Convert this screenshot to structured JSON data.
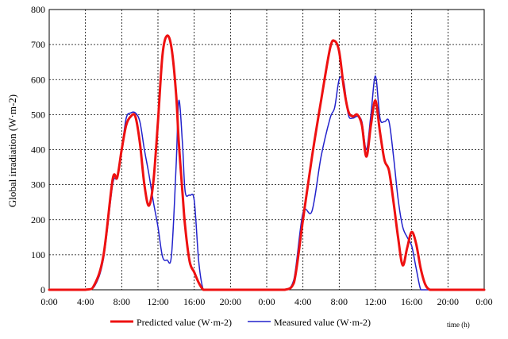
{
  "chart_data": {
    "type": "line",
    "ylabel": "Global irradiation (W·m-2)",
    "xlabel": "time (h)",
    "ylim": [
      0,
      800
    ],
    "yticks": [
      0,
      100,
      200,
      300,
      400,
      500,
      600,
      700,
      800
    ],
    "xlim": [
      0,
      48
    ],
    "xticks": [
      0,
      4,
      8,
      12,
      16,
      20,
      24,
      28,
      32,
      36,
      40,
      44,
      48
    ],
    "xtick_labels": [
      "0:00",
      "4:00",
      "8:00",
      "12:00",
      "16:00",
      "20:00",
      "0:00",
      "4:00",
      "8:00",
      "12:00",
      "16:00",
      "20:00",
      "0:00"
    ],
    "grid": true,
    "legend_position": "bottom",
    "series": [
      {
        "name": "Predicted value (W·m-2)",
        "color": "#ee1111",
        "x": [
          0,
          4,
          5,
          6,
          7,
          7.5,
          8,
          8.5,
          9,
          9.5,
          10,
          10.5,
          11,
          11.5,
          12,
          12.5,
          13,
          13.5,
          14,
          14.3,
          14.7,
          15,
          15.5,
          16,
          16.5,
          17,
          17.5,
          18,
          24,
          26,
          27,
          28,
          29,
          30,
          31,
          31.5,
          32,
          32.5,
          33,
          33.5,
          34,
          34.5,
          35,
          35.5,
          36,
          36.5,
          37,
          37.5,
          38,
          38.5,
          39,
          39.5,
          40,
          40.5,
          41,
          41.5,
          42,
          42.5,
          43,
          48
        ],
        "y": [
          0,
          0,
          15,
          100,
          315,
          320,
          400,
          470,
          495,
          495,
          420,
          300,
          240,
          310,
          480,
          670,
          725,
          690,
          560,
          420,
          280,
          180,
          80,
          50,
          20,
          0,
          0,
          0,
          0,
          0,
          20,
          200,
          380,
          540,
          690,
          710,
          680,
          580,
          510,
          495,
          500,
          470,
          380,
          470,
          540,
          450,
          370,
          340,
          250,
          150,
          70,
          120,
          165,
          130,
          60,
          15,
          0,
          0,
          0,
          0
        ]
      },
      {
        "name": "Measured value (W·m-2)",
        "color": "#2222cc",
        "x": [
          0,
          4,
          5,
          6,
          7,
          7.5,
          8,
          8.5,
          9,
          9.5,
          10,
          10.5,
          11,
          11.5,
          12,
          12.5,
          13,
          13.5,
          14,
          14.3,
          14.7,
          15,
          15.5,
          16,
          16.5,
          17,
          17.5,
          18,
          24,
          26,
          27,
          28,
          29,
          30,
          31,
          31.5,
          32,
          32.5,
          33,
          33.5,
          34,
          34.5,
          35,
          35.5,
          36,
          36.5,
          37,
          37.5,
          38,
          38.5,
          39,
          39.5,
          40,
          40.5,
          41,
          41.5,
          42,
          42.5,
          43,
          48
        ],
        "y": [
          0,
          0,
          10,
          90,
          300,
          320,
          400,
          490,
          505,
          505,
          480,
          400,
          330,
          250,
          180,
          95,
          85,
          100,
          350,
          540,
          420,
          280,
          270,
          255,
          80,
          0,
          0,
          0,
          0,
          0,
          30,
          220,
          225,
          380,
          490,
          520,
          600,
          595,
          500,
          490,
          495,
          480,
          400,
          500,
          610,
          490,
          480,
          480,
          380,
          260,
          180,
          150,
          125,
          60,
          0,
          0,
          0,
          0,
          0,
          0
        ]
      }
    ]
  }
}
